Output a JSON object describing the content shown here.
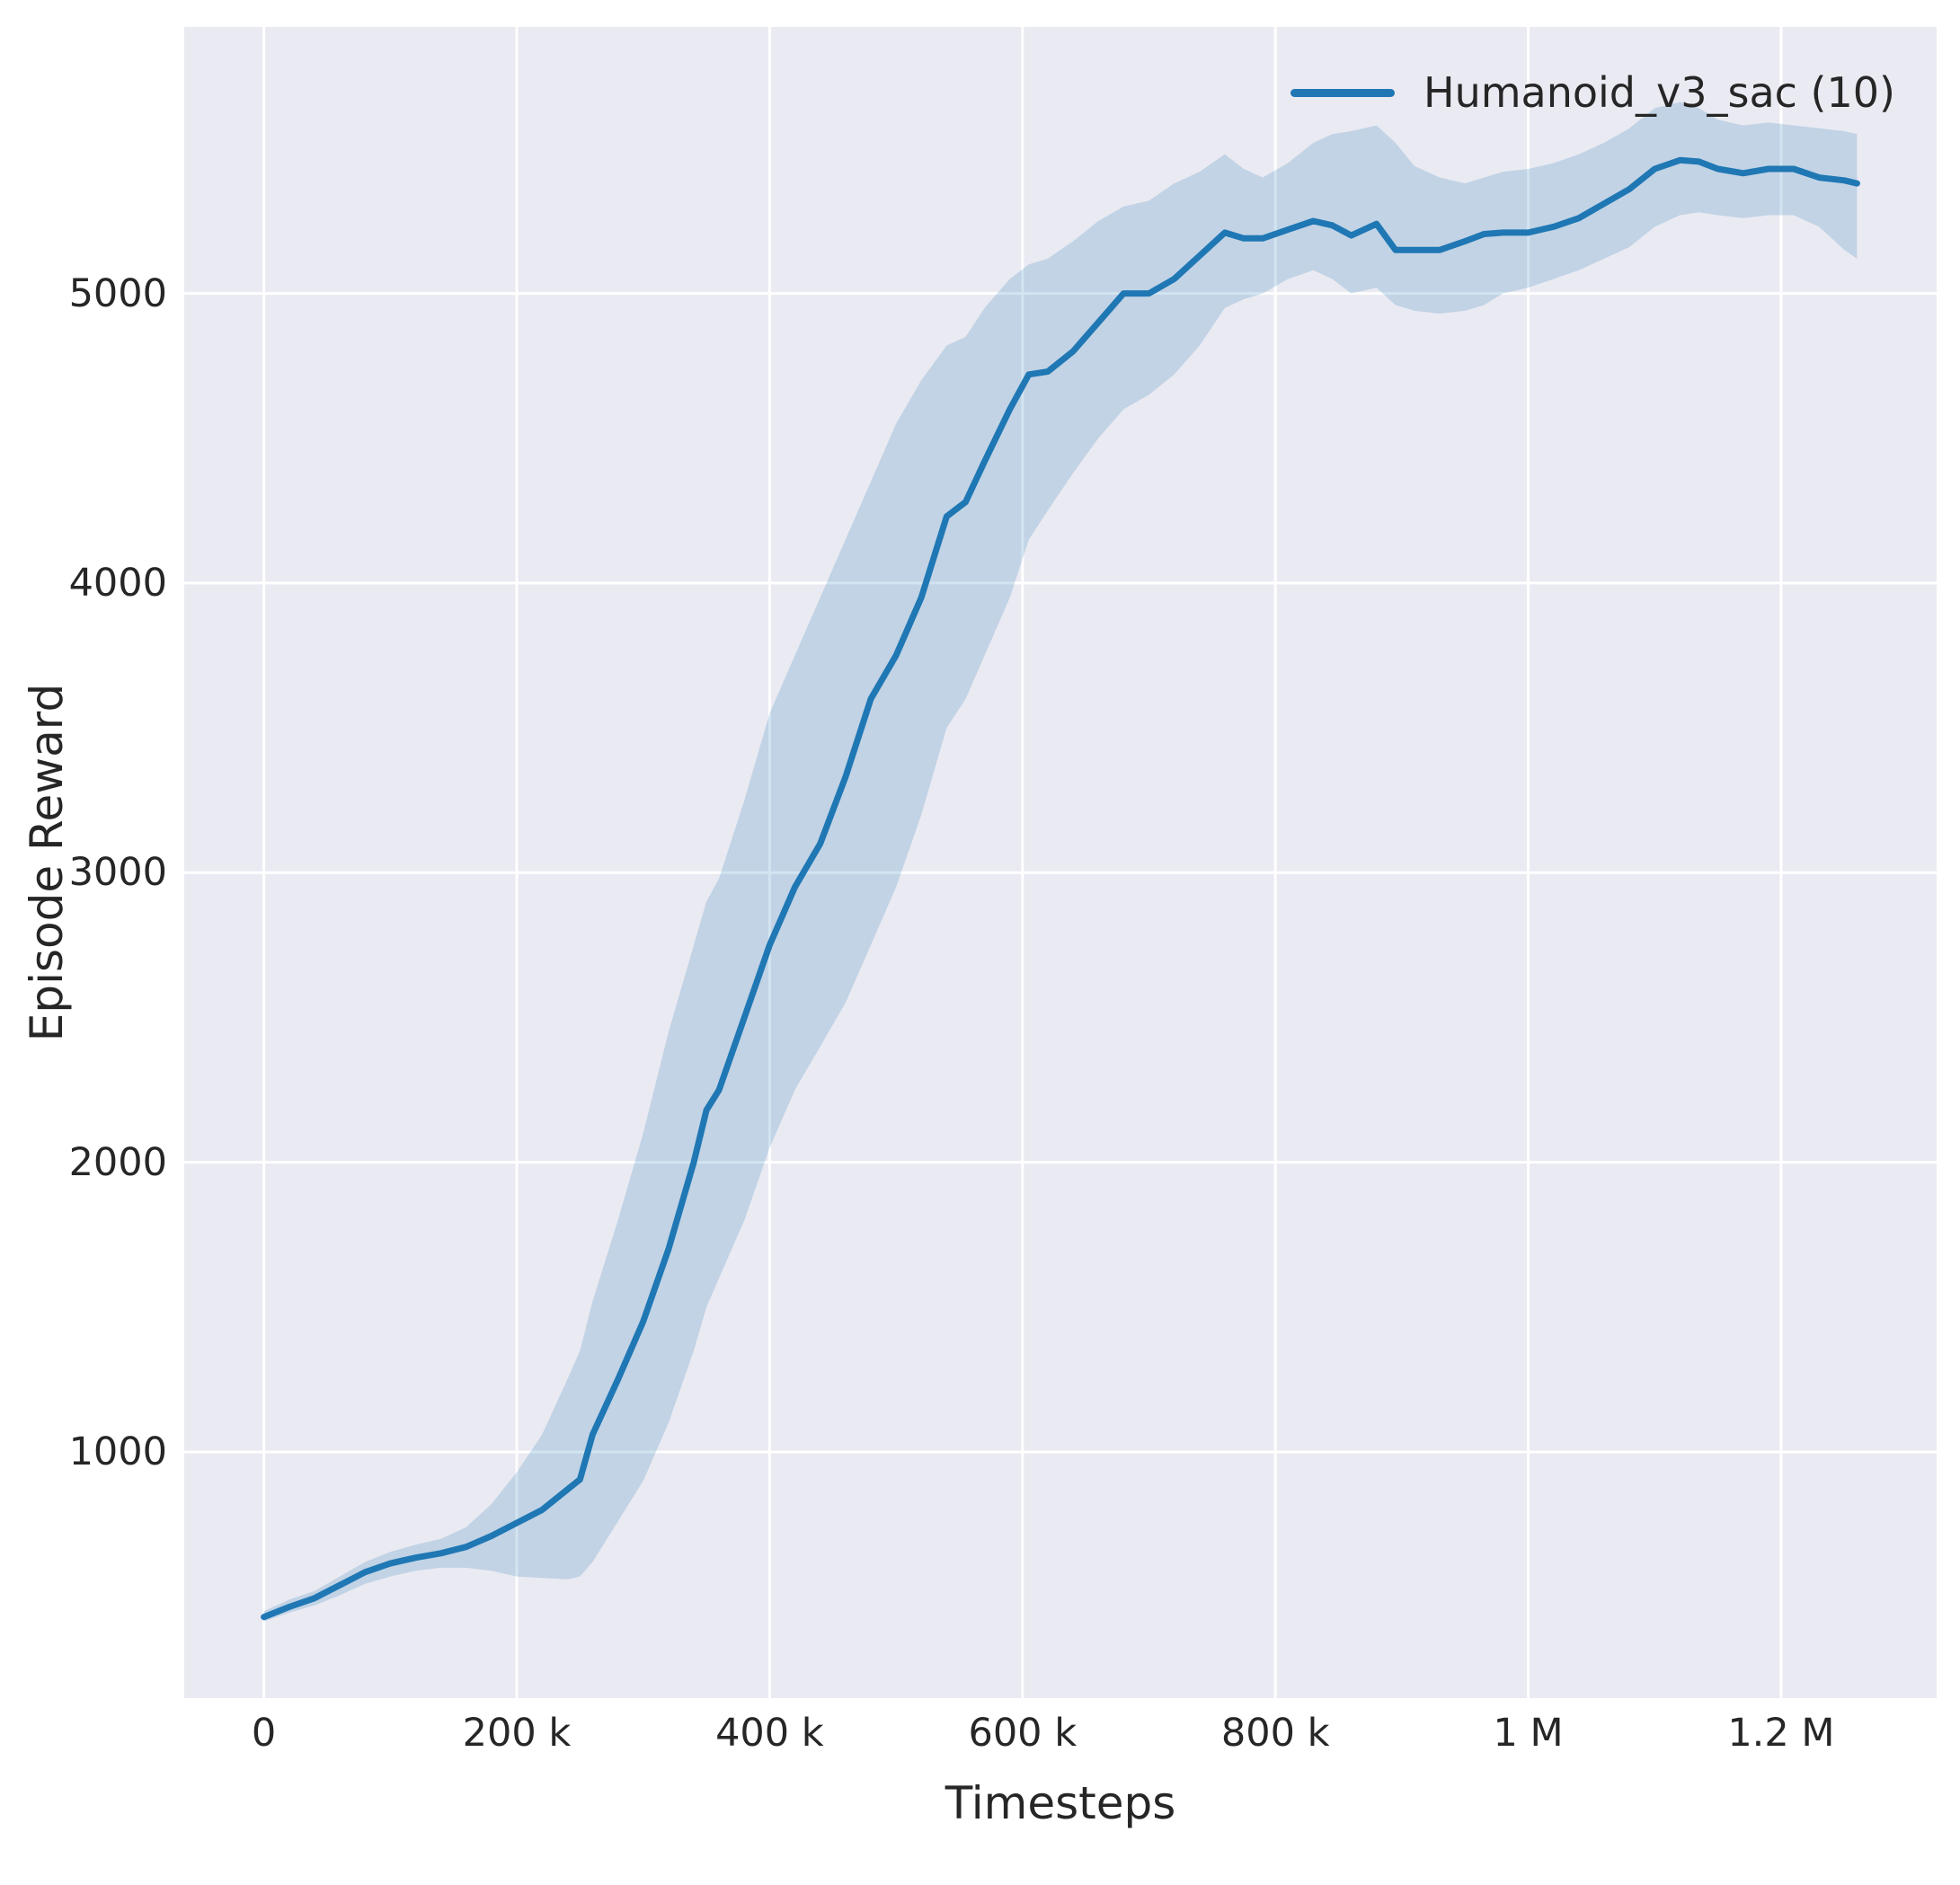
{
  "figure": {
    "background": "#ffffff",
    "plot_background": "#eaeaf2",
    "grid_color": "#ffffff",
    "text_color": "#262626"
  },
  "legend": {
    "label": "Humanoid_v3_sac (10)"
  },
  "chart_data": {
    "type": "line",
    "title": "",
    "xlabel": "Timesteps",
    "ylabel": "Episode Reward",
    "grid": true,
    "legend_position": "upper right",
    "xlim": [
      -63000,
      1323000
    ],
    "ylim": [
      150,
      5920
    ],
    "x_ticks": [
      {
        "value": 0,
        "label": "0"
      },
      {
        "value": 200000,
        "label": "200 k"
      },
      {
        "value": 400000,
        "label": "400 k"
      },
      {
        "value": 600000,
        "label": "600 k"
      },
      {
        "value": 800000,
        "label": "800 k"
      },
      {
        "value": 1000000,
        "label": "1 M"
      },
      {
        "value": 1200000,
        "label": "1.2 M"
      }
    ],
    "y_ticks": [
      {
        "value": 1000,
        "label": "1000"
      },
      {
        "value": 2000,
        "label": "2000"
      },
      {
        "value": 3000,
        "label": "3000"
      },
      {
        "value": 4000,
        "label": "4000"
      },
      {
        "value": 5000,
        "label": "5000"
      }
    ],
    "series": [
      {
        "name": "Humanoid_v3_sac (10)",
        "color": "#1f77b4",
        "band_opacity": 0.2,
        "x": [
          0,
          20000,
          40000,
          60000,
          80000,
          100000,
          120000,
          140000,
          160000,
          180000,
          200000,
          220000,
          240000,
          250000,
          260000,
          280000,
          300000,
          320000,
          340000,
          350000,
          360000,
          380000,
          400000,
          420000,
          440000,
          460000,
          480000,
          500000,
          520000,
          540000,
          555000,
          570000,
          590000,
          605000,
          620000,
          640000,
          660000,
          680000,
          700000,
          720000,
          740000,
          760000,
          775000,
          790000,
          810000,
          830000,
          845000,
          860000,
          880000,
          895000,
          910000,
          930000,
          950000,
          965000,
          980000,
          1000000,
          1020000,
          1040000,
          1060000,
          1080000,
          1100000,
          1120000,
          1135000,
          1150000,
          1170000,
          1190000,
          1210000,
          1230000,
          1250000,
          1260000
        ],
        "mean": [
          430,
          465,
          495,
          540,
          585,
          615,
          635,
          650,
          672,
          710,
          755,
          800,
          870,
          905,
          1060,
          1250,
          1450,
          1700,
          2000,
          2180,
          2250,
          2500,
          2750,
          2950,
          3100,
          3330,
          3600,
          3750,
          3950,
          4230,
          4280,
          4420,
          4600,
          4720,
          4730,
          4800,
          4900,
          5000,
          5000,
          5050,
          5130,
          5210,
          5190,
          5190,
          5220,
          5250,
          5235,
          5200,
          5240,
          5150,
          5150,
          5150,
          5180,
          5205,
          5210,
          5210,
          5230,
          5260,
          5310,
          5360,
          5430,
          5460,
          5455,
          5430,
          5415,
          5430,
          5430,
          5400,
          5390,
          5380
        ],
        "lower": [
          415,
          445,
          470,
          505,
          545,
          570,
          590,
          600,
          600,
          590,
          570,
          565,
          560,
          570,
          620,
          760,
          900,
          1100,
          1350,
          1500,
          1600,
          1800,
          2050,
          2250,
          2400,
          2550,
          2750,
          2950,
          3200,
          3500,
          3600,
          3750,
          3950,
          4150,
          4250,
          4380,
          4500,
          4600,
          4650,
          4720,
          4820,
          4950,
          4980,
          5000,
          5050,
          5080,
          5050,
          5000,
          5020,
          4960,
          4940,
          4930,
          4940,
          4960,
          5000,
          5020,
          5050,
          5080,
          5120,
          5160,
          5230,
          5270,
          5280,
          5270,
          5260,
          5270,
          5270,
          5230,
          5150,
          5120
        ],
        "upper": [
          450,
          490,
          520,
          570,
          620,
          655,
          680,
          700,
          740,
          820,
          930,
          1060,
          1250,
          1350,
          1520,
          1800,
          2100,
          2450,
          2750,
          2900,
          2980,
          3250,
          3550,
          3750,
          3950,
          4150,
          4350,
          4550,
          4700,
          4820,
          4850,
          4950,
          5050,
          5100,
          5120,
          5180,
          5250,
          5300,
          5320,
          5380,
          5420,
          5480,
          5430,
          5400,
          5450,
          5520,
          5550,
          5560,
          5580,
          5520,
          5440,
          5400,
          5380,
          5400,
          5420,
          5430,
          5450,
          5480,
          5520,
          5570,
          5640,
          5660,
          5640,
          5600,
          5580,
          5590,
          5580,
          5570,
          5560,
          5550
        ]
      }
    ]
  }
}
